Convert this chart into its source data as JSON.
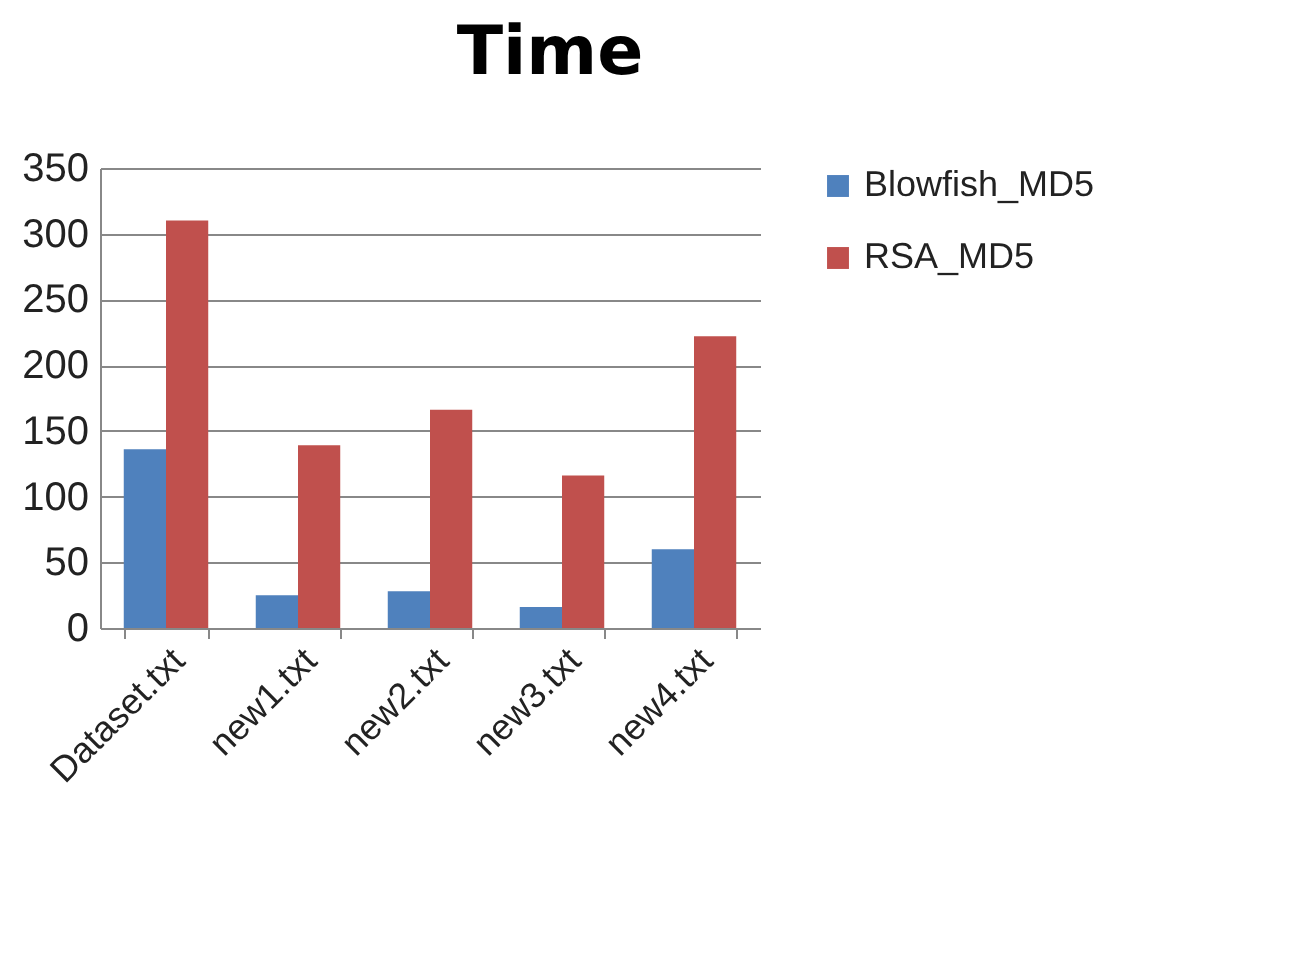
{
  "chart_data": {
    "type": "bar",
    "title": "Time",
    "categories": [
      "Dataset.txt",
      "new1.txt",
      "new2.txt",
      "new3.txt",
      "new4.txt"
    ],
    "series": [
      {
        "name": "Blowfish_MD5",
        "color": "#4f81bd",
        "values": [
          136,
          25,
          28,
          16,
          60
        ]
      },
      {
        "name": "RSA_MD5",
        "color": "#c0504d",
        "values": [
          310,
          139,
          166,
          116,
          222
        ]
      }
    ],
    "ylim": [
      0,
      350
    ],
    "yticks": [
      0,
      50,
      100,
      150,
      200,
      250,
      300,
      350
    ],
    "grid": "y",
    "legend": "right"
  }
}
